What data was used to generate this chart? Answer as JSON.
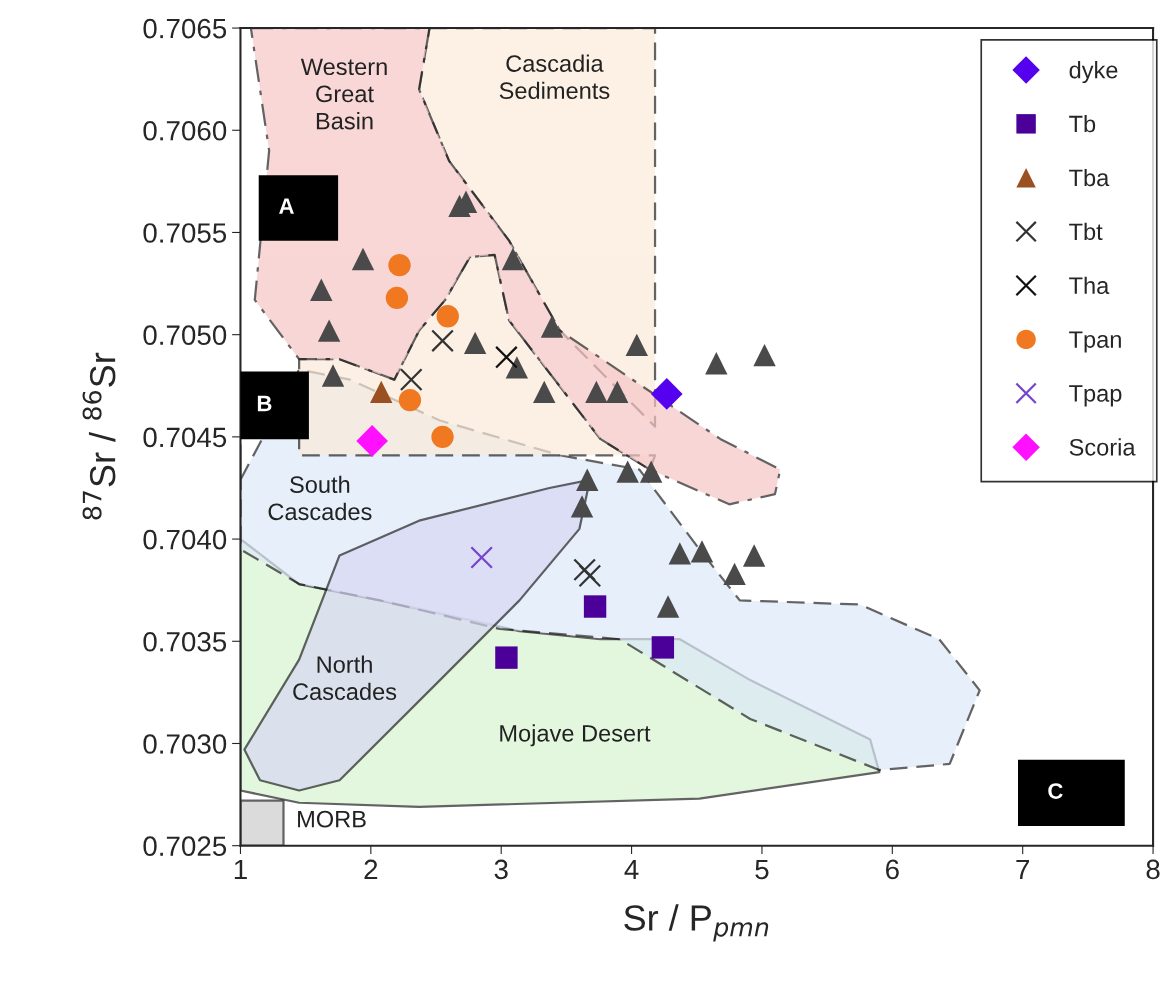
{
  "chart_data": {
    "type": "scatter",
    "xlabel": "Sr / P$_{pmn}$",
    "ylabel": "$^{87}$Sr / $^{86}$Sr",
    "xlim": [
      1,
      8
    ],
    "xticks": [
      1,
      2,
      3,
      4,
      5,
      6,
      7,
      8
    ],
    "ylim": [
      0.7025,
      0.7065
    ],
    "yticks": [
      {
        "value": 0.7025,
        "label": "0.7025"
      },
      {
        "value": 0.703,
        "label": "0.7030"
      },
      {
        "value": 0.7035,
        "label": "0.7035"
      },
      {
        "value": 0.704,
        "label": "0.7040"
      },
      {
        "value": 0.7045,
        "label": "0.7045"
      },
      {
        "value": 0.705,
        "label": "0.7050"
      },
      {
        "value": 0.7055,
        "label": "0.7055"
      },
      {
        "value": 0.706,
        "label": "0.7060"
      },
      {
        "value": 0.7065,
        "label": "0.7065"
      }
    ],
    "grid": false,
    "legend": "top right",
    "series": [
      {
        "type": "area",
        "color": "#d6f5d0",
        "line_style": "solid",
        "x": [
          1.0,
          1.0,
          1.45,
          2.37,
          4.52,
          5.9,
          5.83,
          4.91,
          4.37,
          3.76,
          3.14,
          2.07,
          1.45,
          1.0
        ],
        "values": [
          0.70446,
          0.70277,
          0.70271,
          0.70269,
          0.70273,
          0.70286,
          0.70302,
          0.70331,
          0.70351,
          0.70351,
          0.70355,
          0.7037,
          0.70378,
          0.704
        ]
      },
      {
        "type": "area",
        "color": "#dce9f8",
        "line_style": "dashed",
        "x": [
          1.0,
          1.45,
          1.84,
          2.53,
          3.45,
          4.06,
          4.52,
          4.83,
          5.75,
          6.36,
          6.67,
          6.44,
          5.9,
          4.91,
          3.91,
          2.99,
          2.07,
          1.45,
          1.0
        ],
        "values": [
          0.70429,
          0.70483,
          0.70478,
          0.70458,
          0.70441,
          0.70434,
          0.70395,
          0.7037,
          0.70368,
          0.70351,
          0.70326,
          0.7029,
          0.70287,
          0.70312,
          0.70351,
          0.70356,
          0.7037,
          0.70378,
          0.70395
        ]
      },
      {
        "type": "area",
        "color": "#d8d8f4",
        "line_style": "solid",
        "x": [
          1.03,
          1.45,
          1.76,
          2.37,
          3.37,
          3.68,
          3.6,
          3.14,
          2.53,
          1.76,
          1.45,
          1.15
        ],
        "values": [
          0.70297,
          0.70341,
          0.70392,
          0.70409,
          0.70425,
          0.70429,
          0.70405,
          0.7037,
          0.70331,
          0.70282,
          0.70277,
          0.70282
        ]
      },
      {
        "type": "area",
        "color": "#fbebd9",
        "line_style": "dashed",
        "x": [
          2.45,
          4.18,
          4.18,
          3.45,
          3.06,
          2.6,
          2.37
        ],
        "values": [
          0.7065,
          0.7065,
          0.70455,
          0.70502,
          0.70546,
          0.70585,
          0.7062
        ]
      },
      {
        "type": "area",
        "color": "#fbebd9",
        "line_style": "dashed",
        "x": [
          1.76,
          2.18,
          2.37,
          2.57,
          2.76,
          2.95,
          3.06,
          3.76,
          4.14,
          4.18,
          1.45,
          1.45
        ],
        "values": [
          0.70488,
          0.70478,
          0.70502,
          0.70517,
          0.70538,
          0.70539,
          0.70507,
          0.70449,
          0.70434,
          0.70441,
          0.70441,
          0.70488
        ]
      },
      {
        "type": "area",
        "color": "#f7c6c6",
        "line_style": "dashdot",
        "x": [
          1.08,
          2.45,
          2.37,
          2.6,
          3.06,
          3.45,
          4.68,
          5.14,
          5.1,
          4.75,
          4.14,
          3.76,
          3.06,
          2.95,
          2.76,
          2.57,
          2.37,
          2.18,
          1.76,
          1.45,
          1.11,
          1.22
        ],
        "values": [
          0.7065,
          0.7065,
          0.7062,
          0.70585,
          0.70546,
          0.70502,
          0.70449,
          0.70434,
          0.70422,
          0.70417,
          0.70434,
          0.70449,
          0.70507,
          0.70539,
          0.70538,
          0.70517,
          0.70502,
          0.70478,
          0.70488,
          0.70488,
          0.70517,
          0.7059
        ]
      },
      {
        "type": "area",
        "color": "#cccccc",
        "line_style": "solid",
        "x": [
          1.0,
          1.33,
          1.33,
          1.0
        ],
        "values": [
          0.7025,
          0.7025,
          0.70272,
          0.70272
        ]
      },
      {
        "color": "#4a4a4a",
        "marker": "triangle",
        "x": [
          2.68,
          2.73,
          1.94,
          1.62,
          1.68,
          1.71,
          3.09,
          2.8,
          3.39,
          3.12,
          3.33,
          3.73,
          3.89,
          4.04,
          4.65,
          5.02,
          3.66,
          3.62,
          3.97,
          4.15,
          4.37,
          4.54,
          4.79,
          4.94,
          4.28
        ],
        "values": [
          0.70563,
          0.70565,
          0.70537,
          0.70522,
          0.70502,
          0.7048,
          0.70537,
          0.70496,
          0.70504,
          0.70484,
          0.70472,
          0.70472,
          0.70472,
          0.70495,
          0.70486,
          0.7049,
          0.70429,
          0.70416,
          0.70433,
          0.70433,
          0.70393,
          0.70394,
          0.70383,
          0.70392,
          0.70367
        ]
      },
      {
        "name": "dyke",
        "color": "#5500ee",
        "marker": "diamond",
        "x": [
          4.27
        ],
        "values": [
          0.70471
        ]
      },
      {
        "name": "Tb",
        "color": "#4b0099",
        "marker": "square",
        "x": [
          3.72,
          4.24,
          3.04
        ],
        "values": [
          0.70367,
          0.70347,
          0.70342
        ]
      },
      {
        "name": "Tba",
        "color": "#9a5020",
        "marker": "triangle",
        "x": [
          2.08
        ],
        "values": [
          0.70472
        ]
      },
      {
        "name": "Tbt",
        "color": "#333333",
        "marker": "cross",
        "x": [
          2.55,
          2.31,
          3.64,
          3.68
        ],
        "values": [
          0.70497,
          0.70478,
          0.70385,
          0.70382
        ]
      },
      {
        "name": "Tha",
        "color": "#111111",
        "marker": "cross",
        "x": [
          3.04
        ],
        "values": [
          0.70489
        ]
      },
      {
        "name": "Tpan",
        "color": "#f07820",
        "marker": "circle",
        "x": [
          2.22,
          2.2,
          2.59,
          2.3,
          2.55
        ],
        "values": [
          0.70534,
          0.70518,
          0.70509,
          0.70468,
          0.7045
        ]
      },
      {
        "name": "Tpap",
        "color": "#7744cc",
        "marker": "cross",
        "x": [
          2.85
        ],
        "values": [
          0.70391
        ]
      },
      {
        "name": "Scoria",
        "color": "#ff11ff",
        "marker": "diamond",
        "x": [
          2.01
        ],
        "values": [
          0.70448
        ]
      }
    ],
    "annotations": [
      "Western\nGreat\nBasin",
      "Cascadia\nSediments",
      "South\nCascades",
      "North\nCascades",
      "Mojave Desert",
      "MORB",
      "A",
      "B",
      "C"
    ]
  }
}
